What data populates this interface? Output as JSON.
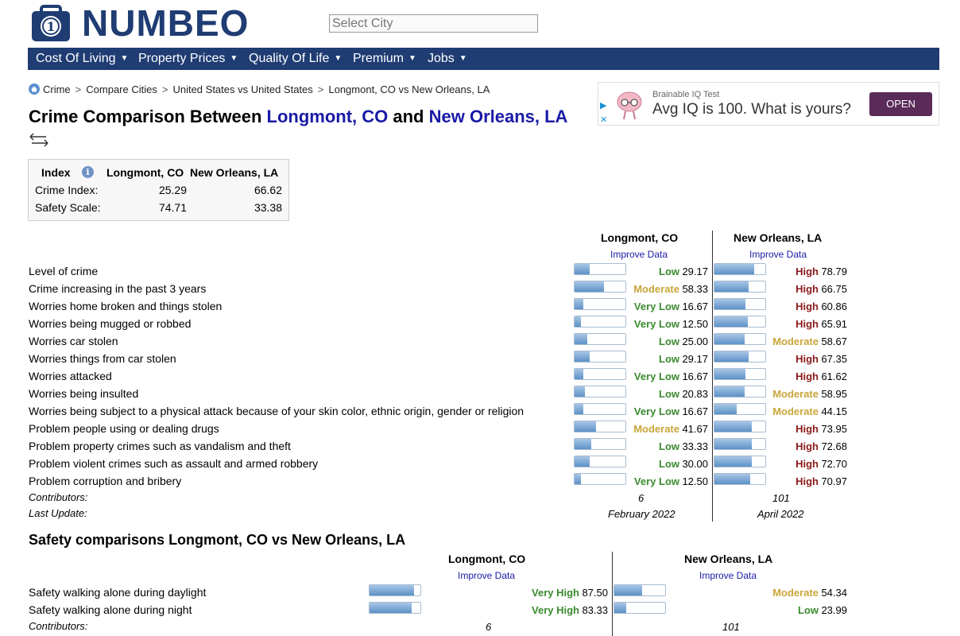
{
  "header": {
    "logo_text": "NUMBEO",
    "search_placeholder": "Select City"
  },
  "nav": [
    {
      "label": "Cost Of Living"
    },
    {
      "label": "Property Prices"
    },
    {
      "label": "Quality Of Life"
    },
    {
      "label": "Premium"
    },
    {
      "label": "Jobs"
    }
  ],
  "breadcrumb": [
    "Crime",
    "Compare Cities",
    "United States vs United States",
    "Longmont, CO vs New Orleans, LA"
  ],
  "title": {
    "prefix": "Crime Comparison Between ",
    "city1": "Longmont, CO",
    "mid": " and ",
    "city2": "New Orleans, LA"
  },
  "ad": {
    "sub": "Brainable IQ Test",
    "main": "Avg IQ is 100. What is yours?",
    "button": "OPEN"
  },
  "summary": {
    "headers": [
      "Index",
      "Longmont, CO",
      "New Orleans, LA"
    ],
    "rows": [
      {
        "label": "Crime Index:",
        "v1": "25.29",
        "v2": "66.62"
      },
      {
        "label": "Safety Scale:",
        "v1": "74.71",
        "v2": "33.38"
      }
    ]
  },
  "crime": {
    "col1": "Longmont, CO",
    "col2": "New Orleans, LA",
    "improve": "Improve Data",
    "rows": [
      {
        "label": "Level of crime",
        "l1": "Low",
        "v1": "29.17",
        "l2": "High",
        "v2": "78.79"
      },
      {
        "label": "Crime increasing in the past 3 years",
        "l1": "Moderate",
        "v1": "58.33",
        "l2": "High",
        "v2": "66.75"
      },
      {
        "label": "Worries home broken and things stolen",
        "l1": "Very Low",
        "v1": "16.67",
        "l2": "High",
        "v2": "60.86"
      },
      {
        "label": "Worries being mugged or robbed",
        "l1": "Very Low",
        "v1": "12.50",
        "l2": "High",
        "v2": "65.91"
      },
      {
        "label": "Worries car stolen",
        "l1": "Low",
        "v1": "25.00",
        "l2": "Moderate",
        "v2": "58.67"
      },
      {
        "label": "Worries things from car stolen",
        "l1": "Low",
        "v1": "29.17",
        "l2": "High",
        "v2": "67.35"
      },
      {
        "label": "Worries attacked",
        "l1": "Very Low",
        "v1": "16.67",
        "l2": "High",
        "v2": "61.62"
      },
      {
        "label": "Worries being insulted",
        "l1": "Low",
        "v1": "20.83",
        "l2": "Moderate",
        "v2": "58.95"
      },
      {
        "label": "Worries being subject to a physical attack because of your skin color, ethnic origin, gender or religion",
        "l1": "Very Low",
        "v1": "16.67",
        "l2": "Moderate",
        "v2": "44.15"
      },
      {
        "label": "Problem people using or dealing drugs",
        "l1": "Moderate",
        "v1": "41.67",
        "l2": "High",
        "v2": "73.95"
      },
      {
        "label": "Problem property crimes such as vandalism and theft",
        "l1": "Low",
        "v1": "33.33",
        "l2": "High",
        "v2": "72.68"
      },
      {
        "label": "Problem violent crimes such as assault and armed robbery",
        "l1": "Low",
        "v1": "30.00",
        "l2": "High",
        "v2": "72.70"
      },
      {
        "label": "Problem corruption and bribery",
        "l1": "Very Low",
        "v1": "12.50",
        "l2": "High",
        "v2": "70.97"
      }
    ],
    "contributors_label": "Contributors:",
    "contributors1": "6",
    "contributors2": "101",
    "update_label": "Last Update:",
    "update1": "February 2022",
    "update2": "April 2022"
  },
  "safety": {
    "title": "Safety comparisons Longmont, CO vs New Orleans, LA",
    "col1": "Longmont, CO",
    "col2": "New Orleans, LA",
    "improve": "Improve Data",
    "rows": [
      {
        "label": "Safety walking alone during daylight",
        "l1": "Very High",
        "v1": "87.50",
        "l2": "Moderate",
        "v2": "54.34"
      },
      {
        "label": "Safety walking alone during night",
        "l1": "Very High",
        "v1": "83.33",
        "l2": "Low",
        "v2": "23.99"
      }
    ],
    "contributors_label": "Contributors:",
    "contributors1": "6",
    "contributors2": "101"
  },
  "level_colors": {
    "Very Low": "#3a8a2e",
    "Low": "#3a8a2e",
    "Moderate": "#c9a53a",
    "High": "#8b1a1a",
    "Very High": "#3a8a2e"
  },
  "icons": {
    "logo": "numbeo-logo-icon",
    "home": "home-icon",
    "swap": "swap-arrows-icon",
    "info": "info-icon",
    "caret": "caret-down-icon"
  }
}
